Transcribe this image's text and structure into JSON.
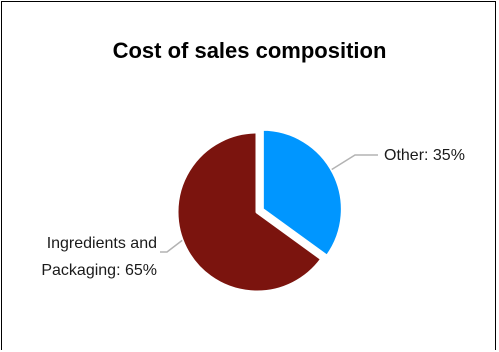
{
  "chart_data": {
    "type": "pie",
    "title": "Cost of sales composition",
    "slices": [
      {
        "name": "Other",
        "value": 35,
        "label": "Other: 35%",
        "color": "#0096FF",
        "exploded": true
      },
      {
        "name": "Ingredients and Packaging",
        "value": 65,
        "label_lines": [
          "Ingredients and",
          "Packaging: 65%"
        ],
        "color": "#7B140E",
        "exploded": false
      }
    ],
    "start_angle": "12 o'clock",
    "direction": "clockwise",
    "legend": "none",
    "leader_line_color": "#b3b3b3"
  }
}
